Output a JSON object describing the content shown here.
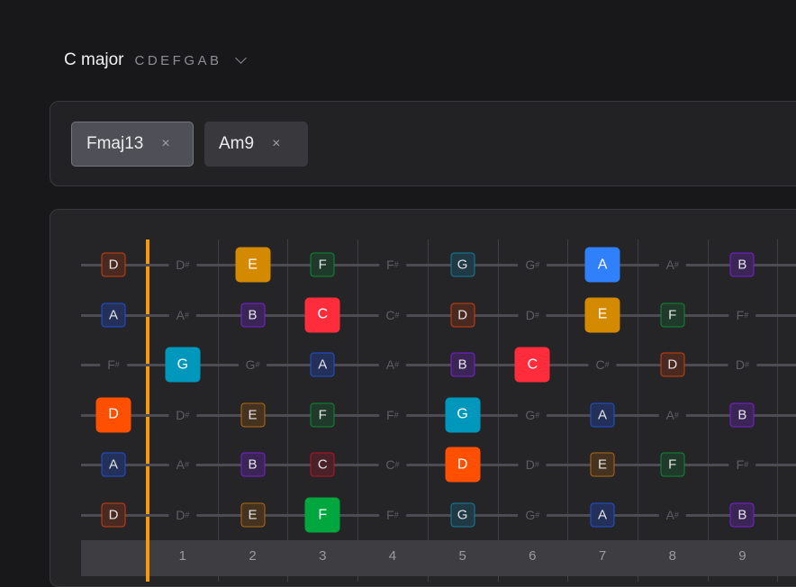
{
  "scale": {
    "name": "C major",
    "notes": "CDEFGAB"
  },
  "chords": [
    {
      "label": "Fmaj13",
      "selected": true,
      "remove": "×"
    },
    {
      "label": "Am9",
      "selected": false,
      "remove": "×"
    }
  ],
  "note_colors": {
    "C": {
      "fill": "#ff2d3b",
      "border": "#b81424",
      "dim": "#4a2126"
    },
    "D": {
      "fill": "#ff4f00",
      "border": "#c8400f",
      "dim": "#4a2a20"
    },
    "E": {
      "fill": "#d38900",
      "border": "#b06a12",
      "dim": "#45331f"
    },
    "F": {
      "fill": "#00a63e",
      "border": "#0b8a32",
      "dim": "#1f3a2a"
    },
    "G": {
      "fill": "#0097bd",
      "border": "#117d9a",
      "dim": "#1f3a45"
    },
    "A": {
      "fill": "#2f80fa",
      "border": "#2050d5",
      "dim": "#23305a"
    },
    "B": {
      "fill": "#8a2be2",
      "border": "#7b1fd6",
      "dim": "#3a2556"
    }
  },
  "accent": "#f59a0b",
  "fret_numbers": [
    "1",
    "2",
    "3",
    "4",
    "5",
    "6",
    "7",
    "8",
    "9"
  ],
  "strings": [
    [
      [
        "D",
        "outline"
      ],
      [
        "D#",
        "muted"
      ],
      [
        "E",
        "filled"
      ],
      [
        "F",
        "outline"
      ],
      [
        "F#",
        "muted"
      ],
      [
        "G",
        "outline"
      ],
      [
        "G#",
        "muted"
      ],
      [
        "A",
        "filled"
      ],
      [
        "A#",
        "muted"
      ],
      [
        "B",
        "outline"
      ]
    ],
    [
      [
        "A",
        "outline"
      ],
      [
        "A#",
        "muted"
      ],
      [
        "B",
        "outline"
      ],
      [
        "C",
        "filled"
      ],
      [
        "C#",
        "muted"
      ],
      [
        "D",
        "outline"
      ],
      [
        "D#",
        "muted"
      ],
      [
        "E",
        "filled"
      ],
      [
        "F",
        "outline"
      ],
      [
        "F#",
        "muted"
      ]
    ],
    [
      [
        "F#",
        "muted"
      ],
      [
        "G",
        "filled"
      ],
      [
        "G#",
        "muted"
      ],
      [
        "A",
        "outline"
      ],
      [
        "A#",
        "muted"
      ],
      [
        "B",
        "outline"
      ],
      [
        "C",
        "filled"
      ],
      [
        "C#",
        "muted"
      ],
      [
        "D",
        "outline"
      ],
      [
        "D#",
        "muted"
      ]
    ],
    [
      [
        "D",
        "filled"
      ],
      [
        "D#",
        "muted"
      ],
      [
        "E",
        "outline"
      ],
      [
        "F",
        "outline"
      ],
      [
        "F#",
        "muted"
      ],
      [
        "G",
        "filled"
      ],
      [
        "G#",
        "muted"
      ],
      [
        "A",
        "outline"
      ],
      [
        "A#",
        "muted"
      ],
      [
        "B",
        "outline"
      ]
    ],
    [
      [
        "A",
        "outline"
      ],
      [
        "A#",
        "muted"
      ],
      [
        "B",
        "outline"
      ],
      [
        "C",
        "outline"
      ],
      [
        "C#",
        "muted"
      ],
      [
        "D",
        "filled"
      ],
      [
        "D#",
        "muted"
      ],
      [
        "E",
        "outline"
      ],
      [
        "F",
        "outline"
      ],
      [
        "F#",
        "muted"
      ]
    ],
    [
      [
        "D",
        "outline"
      ],
      [
        "D#",
        "muted"
      ],
      [
        "E",
        "outline"
      ],
      [
        "F",
        "filled"
      ],
      [
        "F#",
        "muted"
      ],
      [
        "G",
        "outline"
      ],
      [
        "G#",
        "muted"
      ],
      [
        "A",
        "outline"
      ],
      [
        "A#",
        "muted"
      ],
      [
        "B",
        "outline"
      ]
    ]
  ]
}
